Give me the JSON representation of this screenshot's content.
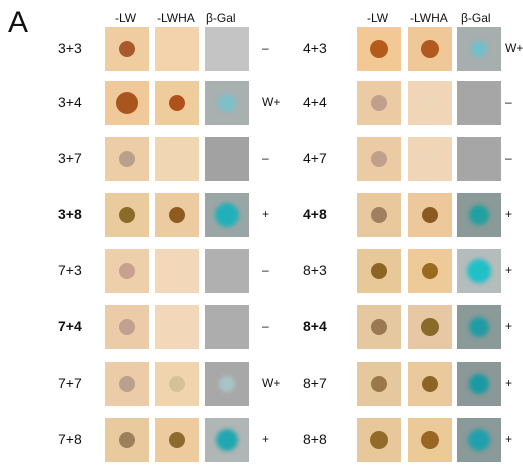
{
  "panel_label": "A",
  "panels": [
    {
      "columns": [
        "-LW",
        "-LWHA",
        "β-Gal"
      ],
      "rows": [
        {
          "label": "3+3",
          "result": "–"
        },
        {
          "label": "3+4",
          "result": "W+"
        },
        {
          "label": "3+7",
          "result": "–"
        },
        {
          "label": "3+8",
          "result": "+",
          "bold": true
        },
        {
          "label": "7+3",
          "result": "–"
        },
        {
          "label": "7+4",
          "result": "–",
          "bold": true
        },
        {
          "label": "7+7",
          "result": "W+"
        },
        {
          "label": "7+8",
          "result": "+"
        }
      ]
    },
    {
      "columns": [
        "-LW",
        "-LWHA",
        "β-Gal"
      ],
      "rows": [
        {
          "label": "4+3",
          "result": "W+"
        },
        {
          "label": "4+4",
          "result": "–"
        },
        {
          "label": "4+7",
          "result": "–"
        },
        {
          "label": "4+8",
          "result": "+",
          "bold": true
        },
        {
          "label": "8+3",
          "result": "+"
        },
        {
          "label": "8+4",
          "result": "+",
          "bold": true
        },
        {
          "label": "8+7",
          "result": "+"
        },
        {
          "label": "8+8",
          "result": "+"
        }
      ]
    }
  ]
}
